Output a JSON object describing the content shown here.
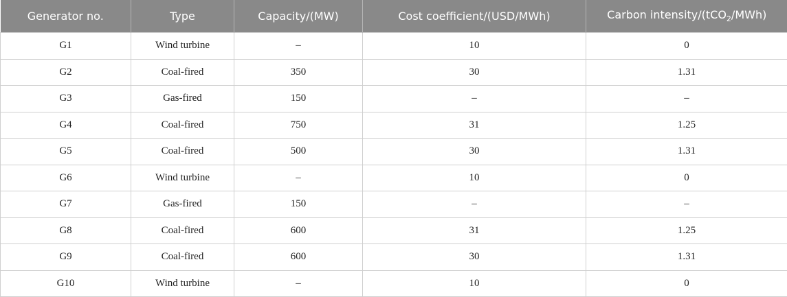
{
  "table": {
    "headers": [
      "Generator no.",
      "Type",
      "Capacity/(MW)",
      "Cost coefficient/(USD/MWh)",
      {
        "text": "Carbon intensity/(tCO",
        "sub": "2",
        "tail": "/MWh)"
      }
    ],
    "rows": [
      [
        "G1",
        "Wind turbine",
        "–",
        10,
        0
      ],
      [
        "G2",
        "Coal-fired",
        350,
        30,
        1.31
      ],
      [
        "G3",
        "Gas-fired",
        150,
        "–",
        "–"
      ],
      [
        "G4",
        "Coal-fired",
        750,
        31,
        1.25
      ],
      [
        "G5",
        "Coal-fired",
        500,
        30,
        1.31
      ],
      [
        "G6",
        "Wind turbine",
        "–",
        10,
        0
      ],
      [
        "G7",
        "Gas-fired",
        150,
        "–",
        "–"
      ],
      [
        "G8",
        "Coal-fired",
        600,
        31,
        1.25
      ],
      [
        "G9",
        "Coal-fired",
        600,
        30,
        1.31
      ],
      [
        "G10",
        "Wind turbine",
        "–",
        10,
        0
      ]
    ]
  }
}
